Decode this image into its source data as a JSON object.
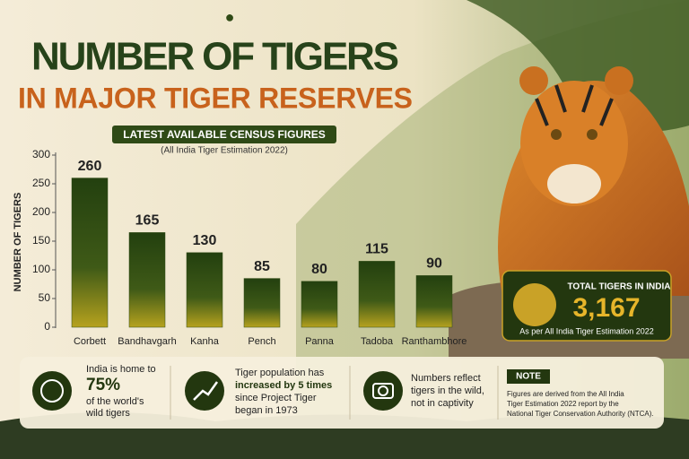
{
  "chart_data": {
    "type": "bar",
    "title": "NUMBER OF TIGERS",
    "title_line2": "IN MAJOR TIGER RESERVES",
    "banner": "LATEST AVAILABLE CENSUS FIGURES",
    "subtitle": "(All India Tiger Estimation 2022)",
    "y_label": "NUMBER OF TIGERS",
    "categories": [
      "Corbett",
      "Bandhavgarh",
      "Kanha",
      "Pench",
      "Panna",
      "Tadoba",
      "Ranthambhore"
    ],
    "values": [
      260,
      165,
      130,
      85,
      80,
      115,
      90
    ],
    "color": "#2f4a16",
    "ylim": [
      0,
      300
    ],
    "yticks": [
      0,
      50,
      100,
      150,
      200,
      250,
      300
    ],
    "grid": false
  },
  "total_box": {
    "heading": "TOTAL TIGERS IN INDIA",
    "value": "3,167",
    "caption": "As per All India Tiger Estimation 2022"
  },
  "facts": [
    {
      "lines": [
        "India is home to",
        "75%",
        "of the world's",
        "wild tigers"
      ]
    },
    {
      "lines": [
        "Tiger population has",
        "increased by 5 times",
        "since Project Tiger",
        "began in 1973"
      ]
    },
    {
      "lines": [
        "Numbers reflect",
        "tigers in the wild,",
        "not in captivity"
      ]
    }
  ],
  "note": {
    "heading": "NOTE",
    "lines": [
      "Figures are derived from the All India",
      "Tiger Estimation 2022 report by the",
      "National Tiger Conservation Authority (NTCA)."
    ]
  }
}
